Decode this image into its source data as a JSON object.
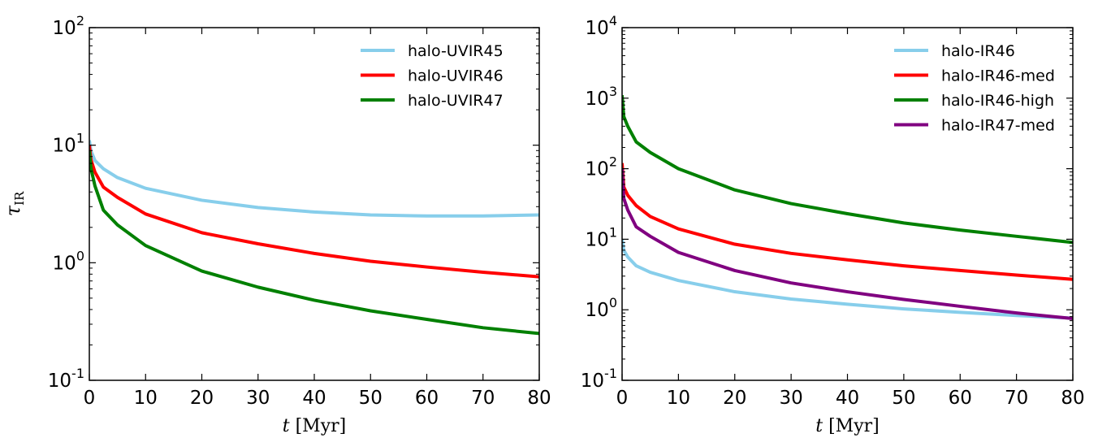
{
  "chart_data": [
    {
      "type": "line",
      "xlabel": "t [Myr]",
      "ylabel": "τ_IR",
      "ylabel_main": "τ",
      "ylabel_sub": "IR",
      "xlim": [
        0,
        80
      ],
      "ylim": [
        0.1,
        100
      ],
      "yscale": "log",
      "xticks": [
        "0",
        "10",
        "20",
        "30",
        "40",
        "50",
        "60",
        "70",
        "80"
      ],
      "yticks": [
        {
          "value": 0.1,
          "base": "10",
          "exp": "-1"
        },
        {
          "value": 1,
          "base": "10",
          "exp": "0"
        },
        {
          "value": 10,
          "base": "10",
          "exp": "1"
        },
        {
          "value": 100,
          "base": "10",
          "exp": "2"
        }
      ],
      "legend_position": "top-right",
      "series": [
        {
          "name": "halo-UVIR45",
          "color": "#87ceeb",
          "x": [
            0,
            0.3,
            1,
            2.5,
            5,
            10,
            20,
            30,
            40,
            50,
            60,
            70,
            80
          ],
          "y": [
            11,
            8.9,
            7.4,
            6.3,
            5.3,
            4.3,
            3.4,
            2.95,
            2.7,
            2.55,
            2.5,
            2.5,
            2.55
          ]
        },
        {
          "name": "halo-UVIR46",
          "color": "#ff0000",
          "x": [
            0,
            0.3,
            1,
            2.5,
            5,
            10,
            20,
            30,
            40,
            50,
            60,
            70,
            80
          ],
          "y": [
            10,
            7.5,
            5.9,
            4.4,
            3.6,
            2.6,
            1.8,
            1.45,
            1.2,
            1.03,
            0.92,
            0.83,
            0.76
          ]
        },
        {
          "name": "halo-UVIR47",
          "color": "#008000",
          "x": [
            0,
            0.3,
            1,
            2.5,
            5,
            10,
            20,
            30,
            40,
            50,
            60,
            70,
            80
          ],
          "y": [
            9,
            6.3,
            4.5,
            2.8,
            2.1,
            1.4,
            0.85,
            0.62,
            0.48,
            0.39,
            0.33,
            0.28,
            0.25
          ]
        }
      ]
    },
    {
      "type": "line",
      "xlabel": "t [Myr]",
      "ylabel": "",
      "xlim": [
        0,
        80
      ],
      "ylim": [
        0.1,
        10000
      ],
      "yscale": "log",
      "xticks": [
        "0",
        "10",
        "20",
        "30",
        "40",
        "50",
        "60",
        "70",
        "80"
      ],
      "yticks": [
        {
          "value": 0.1,
          "base": "10",
          "exp": "-1"
        },
        {
          "value": 1,
          "base": "10",
          "exp": "0"
        },
        {
          "value": 10,
          "base": "10",
          "exp": "1"
        },
        {
          "value": 100,
          "base": "10",
          "exp": "2"
        },
        {
          "value": 1000,
          "base": "10",
          "exp": "3"
        },
        {
          "value": 10000,
          "base": "10",
          "exp": "4"
        }
      ],
      "legend_position": "top-right",
      "series": [
        {
          "name": "halo-IR46",
          "color": "#87ceeb",
          "x": [
            0,
            0.3,
            1,
            2.5,
            5,
            10,
            20,
            30,
            40,
            50,
            60,
            70,
            80
          ],
          "y": [
            10,
            7,
            5.6,
            4.2,
            3.4,
            2.6,
            1.8,
            1.42,
            1.2,
            1.03,
            0.92,
            0.83,
            0.76
          ]
        },
        {
          "name": "halo-IR46-med",
          "color": "#ff0000",
          "x": [
            0,
            0.3,
            1,
            2.5,
            5,
            10,
            20,
            30,
            40,
            50,
            60,
            70,
            80
          ],
          "y": [
            120,
            55,
            42,
            30,
            21,
            14,
            8.5,
            6.3,
            5.1,
            4.2,
            3.6,
            3.1,
            2.7
          ]
        },
        {
          "name": "halo-IR46-high",
          "color": "#008000",
          "x": [
            0,
            0.3,
            1,
            2.5,
            5,
            10,
            20,
            30,
            40,
            50,
            60,
            70,
            80
          ],
          "y": [
            1100,
            550,
            400,
            240,
            170,
            100,
            50,
            32,
            23,
            17,
            13.5,
            11,
            9
          ]
        },
        {
          "name": "halo-IR47-med",
          "color": "#800080",
          "x": [
            0,
            0.3,
            1,
            2.5,
            5,
            10,
            20,
            30,
            40,
            50,
            60,
            70,
            80
          ],
          "y": [
            100,
            38,
            26,
            15,
            11,
            6.5,
            3.6,
            2.4,
            1.8,
            1.4,
            1.12,
            0.9,
            0.75
          ]
        }
      ]
    }
  ]
}
